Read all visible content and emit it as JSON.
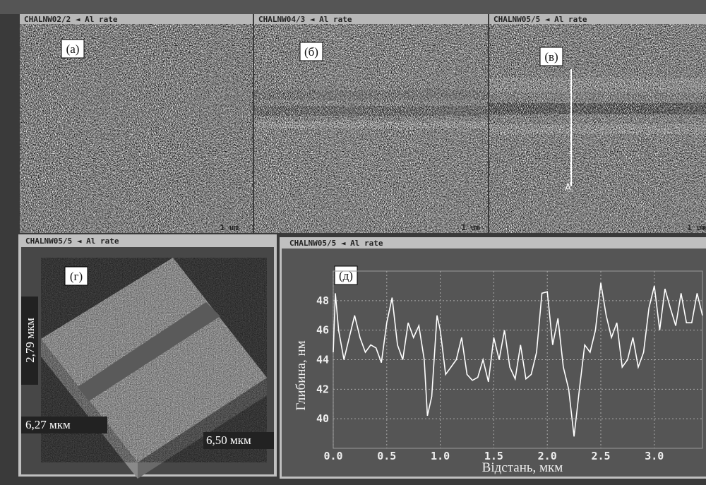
{
  "panels": [
    {
      "header": "CHALNW02/2 ◄ Al rate",
      "label": "(а)",
      "scale": "1 um"
    },
    {
      "header": "CHALNW04/3 ◄ Al rate",
      "label": "(б)",
      "scale": "1 um"
    },
    {
      "header": "CHALNW05/5 ◄ Al rate",
      "label": "(в)",
      "scale": "1 um",
      "marker": "A"
    },
    {
      "header": "CHALNW05/5 ◄ Al rate",
      "label": "(г)",
      "dimensions": [
        "2,79 мкм",
        "6,27 мкм",
        "6,50 мкм"
      ]
    }
  ],
  "chart_data": {
    "type": "line",
    "header": "CHALNW05/5 ◄ Al rate",
    "label": "(д)",
    "x_label": "Відстань, мкм",
    "y_label": "Глибина, нм",
    "x": [
      0,
      0.02,
      0.05,
      0.1,
      0.15,
      0.2,
      0.25,
      0.3,
      0.35,
      0.4,
      0.45,
      0.5,
      0.55,
      0.6,
      0.65,
      0.7,
      0.75,
      0.8,
      0.85,
      0.88,
      0.92,
      0.97,
      1.0,
      1.05,
      1.1,
      1.15,
      1.2,
      1.25,
      1.3,
      1.35,
      1.4,
      1.45,
      1.5,
      1.55,
      1.6,
      1.65,
      1.7,
      1.75,
      1.8,
      1.85,
      1.9,
      1.95,
      2.0,
      2.05,
      2.1,
      2.15,
      2.2,
      2.25,
      2.3,
      2.35,
      2.4,
      2.45,
      2.5,
      2.55,
      2.6,
      2.65,
      2.7,
      2.75,
      2.8,
      2.85,
      2.9,
      2.95,
      3.0,
      3.05,
      3.1,
      3.15,
      3.2,
      3.25,
      3.3,
      3.35,
      3.4,
      3.45
    ],
    "values": [
      44.5,
      48.5,
      46,
      44,
      45.5,
      47,
      45.5,
      44.5,
      45,
      44.8,
      43.8,
      46.5,
      48.2,
      45,
      44,
      46.5,
      45.5,
      46.3,
      44,
      40.2,
      41.5,
      47,
      46,
      43,
      43.5,
      44,
      45.5,
      43,
      42.6,
      42.8,
      44,
      42.5,
      45.5,
      44,
      46,
      43.5,
      42.7,
      45,
      42.7,
      43,
      44.5,
      48.5,
      48.6,
      45,
      46.8,
      43.5,
      42,
      38.8,
      42,
      45,
      44.5,
      46,
      49.2,
      47,
      45.5,
      46.5,
      43.5,
      44,
      45.5,
      43.5,
      44.5,
      47.5,
      49,
      46,
      48.8,
      47.5,
      46.3,
      48.5,
      46.5,
      46.5,
      48.5,
      47
    ],
    "color": "#ffffff",
    "xlim": [
      0,
      3.45
    ],
    "ylim": [
      38,
      50
    ],
    "xticks": [
      {
        "value": 0,
        "label": "0.0"
      },
      0.5,
      {
        "value": 1,
        "label": "1.0"
      },
      1.5,
      {
        "value": 2,
        "label": "2.0"
      },
      2.5,
      {
        "value": 3,
        "label": "3.0"
      }
    ],
    "yticks": [
      40,
      42,
      44,
      46,
      48
    ],
    "grid": true
  }
}
